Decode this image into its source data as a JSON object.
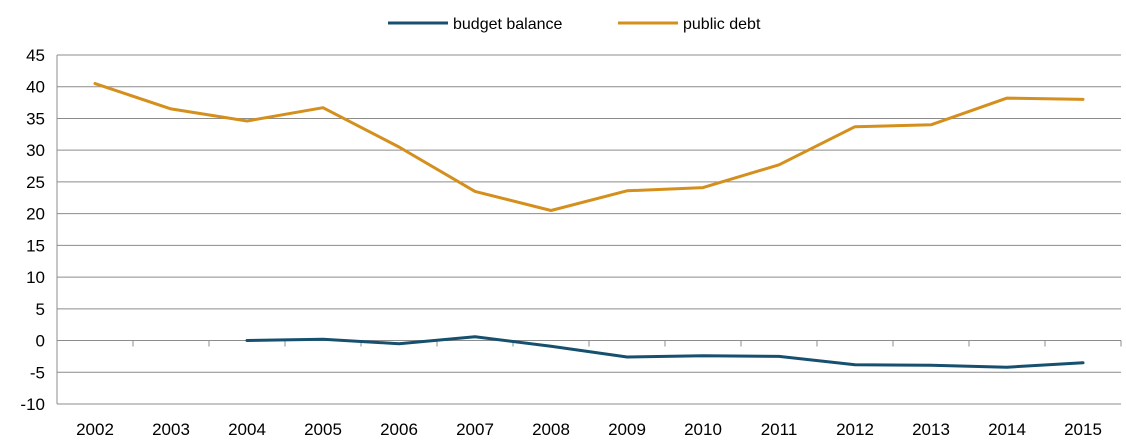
{
  "chart_data": {
    "type": "line",
    "title": "",
    "xlabel": "",
    "ylabel": "",
    "categories": [
      "2002",
      "2003",
      "2004",
      "2005",
      "2006",
      "2007",
      "2008",
      "2009",
      "2010",
      "2011",
      "2012",
      "2013",
      "2014",
      "2015"
    ],
    "ylim": [
      -10,
      45
    ],
    "yticks": [
      -10,
      -5,
      0,
      5,
      10,
      15,
      20,
      25,
      30,
      35,
      40,
      45
    ],
    "grid": true,
    "legend_position": "top-center",
    "series": [
      {
        "name": "budget balance",
        "color": "#17506e",
        "values": [
          null,
          null,
          0.0,
          0.2,
          -0.5,
          0.6,
          -0.9,
          -2.6,
          -2.4,
          -2.5,
          -3.8,
          -3.9,
          -4.2,
          -3.5
        ]
      },
      {
        "name": "public debt",
        "color": "#d48f1c",
        "values": [
          40.5,
          36.5,
          34.6,
          36.7,
          30.5,
          23.5,
          20.5,
          23.6,
          24.1,
          27.7,
          33.7,
          34.0,
          38.2,
          38.0
        ]
      }
    ]
  }
}
